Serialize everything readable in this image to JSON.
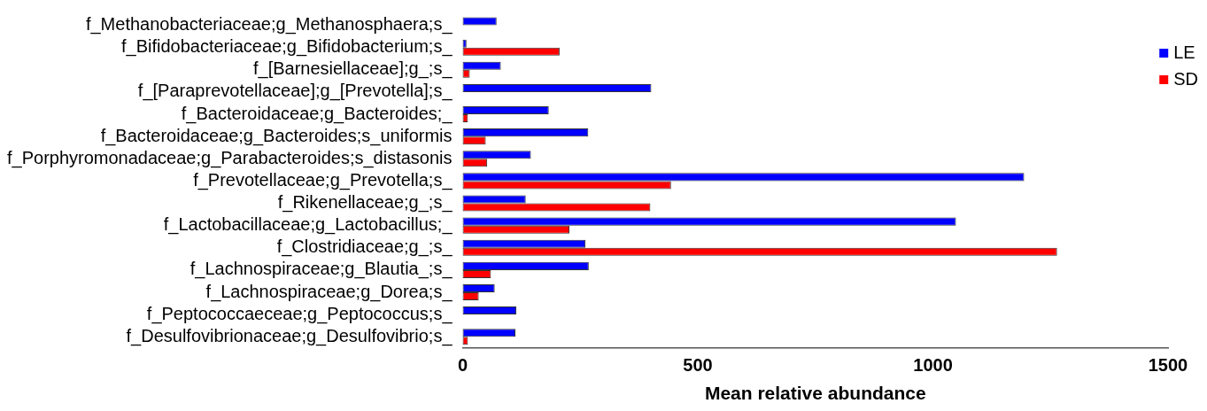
{
  "chart_data": {
    "type": "bar",
    "orientation": "horizontal",
    "xlabel": "Mean relative abundance",
    "categories": [
      "f_Methanobacteriaceae;g_Methanosphaera;s_",
      "f_Bifidobacteriaceae;g_Bifidobacterium;s_",
      "f_[Barnesiellaceae];g_;s_",
      "f_[Paraprevotellaceae];g_[Prevotella];s_",
      "f_Bacteroidaceae;g_Bacteroides;_",
      "f_Bacteroidaceae;g_Bacteroides;s_uniformis",
      "f_Porphyromonadaceae;g_Parabacteroides;s_distasonis",
      "f_Prevotellaceae;g_Prevotella;s_",
      "f_Rikenellaceae;g_;s_",
      "f_Lactobacillaceae;g_Lactobacillus;_",
      "f_Clostridiaceae;g_;s_",
      "f_Lachnospiraceae;g_Blautia_;s_",
      "f_Lachnospiraceae;g_Dorea;s_",
      "f_Peptococcaeceae;g_Peptococcus;s_",
      "f_Desulfovibrionaceae;g_Desulfovibrio;s_"
    ],
    "series": [
      {
        "name": "LE",
        "color": "#0000ff",
        "values": [
          72,
          8,
          81,
          401,
          183,
          267,
          145,
          1194,
          134,
          1049,
          261,
          268,
          68,
          114,
          112
        ]
      },
      {
        "name": "SD",
        "color": "#ff0000",
        "values": [
          0,
          206,
          15,
          0,
          11,
          49,
          52,
          443,
          399,
          227,
          1264,
          60,
          34,
          0,
          11
        ]
      }
    ],
    "xlim": [
      0,
      1500
    ],
    "xticks": [
      0,
      500,
      1000,
      1500
    ],
    "grid": false,
    "legend": "top right"
  }
}
